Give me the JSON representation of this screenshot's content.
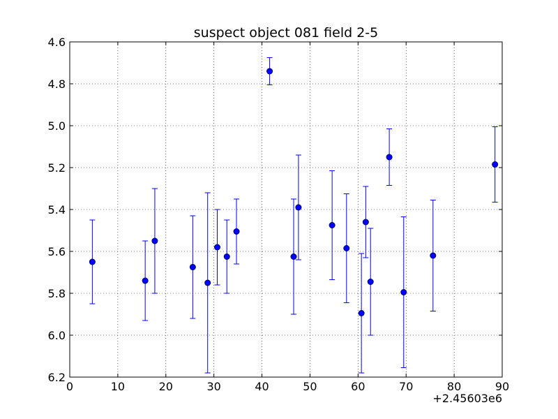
{
  "chart_data": {
    "type": "scatter",
    "title": "suspect object 081 field 2-5",
    "xlabel": "",
    "ylabel": "",
    "x_offset_label": "+2.45603e6",
    "xlim": [
      0,
      90
    ],
    "ylim": [
      4.6,
      6.2
    ],
    "y_inverted": true,
    "grid": true,
    "x_ticks": [
      0,
      10,
      20,
      30,
      40,
      50,
      60,
      70,
      80,
      90
    ],
    "x_tick_labels": [
      "0",
      "10",
      "20",
      "30",
      "40",
      "50",
      "60",
      "70",
      "80",
      "90"
    ],
    "y_ticks": [
      4.6,
      4.8,
      5.0,
      5.2,
      5.4,
      5.6,
      5.8,
      6.0,
      6.2
    ],
    "y_tick_labels": [
      "4.6",
      "4.8",
      "5.0",
      "5.2",
      "5.4",
      "5.6",
      "5.8",
      "6.0",
      "6.2"
    ],
    "marker_color": "#0000ff",
    "series": [
      {
        "points": [
          {
            "x": 4.7,
            "y": 5.65,
            "err": 0.2
          },
          {
            "x": 15.7,
            "y": 5.74,
            "err": 0.19
          },
          {
            "x": 17.7,
            "y": 5.55,
            "err": 0.25
          },
          {
            "x": 25.6,
            "y": 5.675,
            "err": 0.245
          },
          {
            "x": 28.7,
            "y": 5.75,
            "err": 0.43
          },
          {
            "x": 30.7,
            "y": 5.58,
            "err": 0.18
          },
          {
            "x": 32.7,
            "y": 5.625,
            "err": 0.175
          },
          {
            "x": 34.7,
            "y": 5.505,
            "err": 0.155
          },
          {
            "x": 41.6,
            "y": 4.74,
            "err": 0.065
          },
          {
            "x": 46.6,
            "y": 5.625,
            "err": 0.275
          },
          {
            "x": 47.6,
            "y": 5.39,
            "err": 0.25
          },
          {
            "x": 54.6,
            "y": 5.475,
            "err": 0.26
          },
          {
            "x": 57.6,
            "y": 5.585,
            "err": 0.26
          },
          {
            "x": 60.7,
            "y": 5.895,
            "err": 0.285
          },
          {
            "x": 61.6,
            "y": 5.46,
            "err": 0.17
          },
          {
            "x": 62.6,
            "y": 5.745,
            "err": 0.255
          },
          {
            "x": 66.5,
            "y": 5.15,
            "err": 0.135
          },
          {
            "x": 69.5,
            "y": 5.795,
            "err": 0.36
          },
          {
            "x": 75.6,
            "y": 5.62,
            "err": 0.265
          },
          {
            "x": 88.5,
            "y": 5.185,
            "err": 0.18
          }
        ]
      }
    ]
  }
}
